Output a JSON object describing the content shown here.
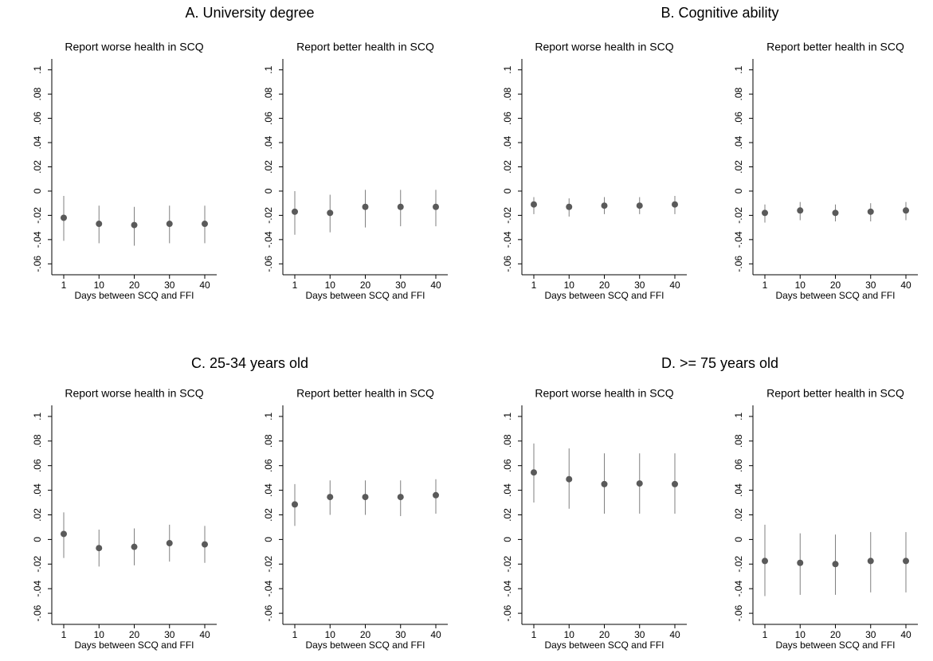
{
  "panel_titles": [
    "A. University degree",
    "B. Cognitive ability",
    "C. 25-34 years old",
    "D. >= 75 years old"
  ],
  "chart_data": [
    {
      "type": "errorbar",
      "title": "Report worse health in SCQ",
      "x_label": "Days between SCQ and FFI",
      "categories": [
        "1",
        "10",
        "20",
        "30",
        "40"
      ],
      "color": "#5a5a5a",
      "line_color": "#7f7f7f",
      "values": [
        -0.022,
        -0.027,
        -0.028,
        -0.027,
        -0.027
      ],
      "ci_low": [
        -0.041,
        -0.043,
        -0.045,
        -0.043,
        -0.043
      ],
      "ci_high": [
        -0.004,
        -0.012,
        -0.013,
        -0.012,
        -0.012
      ],
      "ylim": [
        -0.069,
        0.109
      ],
      "yticks": [
        {
          "value": -0.06,
          "label": "-.06"
        },
        {
          "value": -0.04,
          "label": "-.04"
        },
        {
          "value": -0.02,
          "label": "-.02"
        },
        0,
        {
          "value": 0.02,
          "label": ".02"
        },
        {
          "value": 0.04,
          "label": ".04"
        },
        {
          "value": 0.06,
          "label": ".06"
        },
        {
          "value": 0.08,
          "label": ".08"
        },
        {
          "value": 0.1,
          "label": ".1"
        }
      ]
    },
    {
      "type": "errorbar",
      "title": "Report better health in SCQ",
      "x_label": "Days between SCQ and FFI",
      "categories": [
        "1",
        "10",
        "20",
        "30",
        "40"
      ],
      "color": "#5a5a5a",
      "line_color": "#7f7f7f",
      "values": [
        -0.017,
        -0.018,
        -0.013,
        -0.013,
        -0.013
      ],
      "ci_low": [
        -0.036,
        -0.034,
        -0.03,
        -0.029,
        -0.029
      ],
      "ci_high": [
        0.0,
        -0.003,
        0.001,
        0.001,
        0.001
      ],
      "ylim": [
        -0.069,
        0.109
      ],
      "yticks": [
        {
          "value": -0.06,
          "label": "-.06"
        },
        {
          "value": -0.04,
          "label": "-.04"
        },
        {
          "value": -0.02,
          "label": "-.02"
        },
        0,
        {
          "value": 0.02,
          "label": ".02"
        },
        {
          "value": 0.04,
          "label": ".04"
        },
        {
          "value": 0.06,
          "label": ".06"
        },
        {
          "value": 0.08,
          "label": ".08"
        },
        {
          "value": 0.1,
          "label": ".1"
        }
      ]
    },
    {
      "type": "errorbar",
      "title": "Report worse health in SCQ",
      "x_label": "Days between SCQ and FFI",
      "categories": [
        "1",
        "10",
        "20",
        "30",
        "40"
      ],
      "color": "#5a5a5a",
      "line_color": "#7f7f7f",
      "values": [
        -0.011,
        -0.013,
        -0.012,
        -0.012,
        -0.011
      ],
      "ci_low": [
        -0.019,
        -0.021,
        -0.019,
        -0.019,
        -0.019
      ],
      "ci_high": [
        -0.005,
        -0.006,
        -0.005,
        -0.005,
        -0.004
      ],
      "ylim": [
        -0.069,
        0.109
      ],
      "yticks": [
        {
          "value": -0.06,
          "label": "-.06"
        },
        {
          "value": -0.04,
          "label": "-.04"
        },
        {
          "value": -0.02,
          "label": "-.02"
        },
        0,
        {
          "value": 0.02,
          "label": ".02"
        },
        {
          "value": 0.04,
          "label": ".04"
        },
        {
          "value": 0.06,
          "label": ".06"
        },
        {
          "value": 0.08,
          "label": ".08"
        },
        {
          "value": 0.1,
          "label": ".1"
        }
      ]
    },
    {
      "type": "errorbar",
      "title": "Report better health in SCQ",
      "x_label": "Days between SCQ and FFI",
      "categories": [
        "1",
        "10",
        "20",
        "30",
        "40"
      ],
      "color": "#5a5a5a",
      "line_color": "#7f7f7f",
      "values": [
        -0.018,
        -0.016,
        -0.018,
        -0.017,
        -0.016
      ],
      "ci_low": [
        -0.026,
        -0.024,
        -0.025,
        -0.025,
        -0.024
      ],
      "ci_high": [
        -0.011,
        -0.009,
        -0.011,
        -0.01,
        -0.009
      ],
      "ylim": [
        -0.069,
        0.109
      ],
      "yticks": [
        {
          "value": -0.06,
          "label": "-.06"
        },
        {
          "value": -0.04,
          "label": "-.04"
        },
        {
          "value": -0.02,
          "label": "-.02"
        },
        0,
        {
          "value": 0.02,
          "label": ".02"
        },
        {
          "value": 0.04,
          "label": ".04"
        },
        {
          "value": 0.06,
          "label": ".06"
        },
        {
          "value": 0.08,
          "label": ".08"
        },
        {
          "value": 0.1,
          "label": ".1"
        }
      ]
    },
    {
      "type": "errorbar",
      "title": "Report worse health in SCQ",
      "x_label": "Days between SCQ and FFI",
      "categories": [
        "1",
        "10",
        "20",
        "30",
        "40"
      ],
      "color": "#5a5a5a",
      "line_color": "#7f7f7f",
      "values": [
        0.0045,
        -0.007,
        -0.006,
        -0.003,
        -0.004
      ],
      "ci_low": [
        -0.015,
        -0.022,
        -0.021,
        -0.018,
        -0.019
      ],
      "ci_high": [
        0.022,
        0.008,
        0.009,
        0.012,
        0.011
      ],
      "ylim": [
        -0.069,
        0.109
      ],
      "yticks": [
        {
          "value": -0.06,
          "label": "-.06"
        },
        {
          "value": -0.04,
          "label": "-.04"
        },
        {
          "value": -0.02,
          "label": "-.02"
        },
        0,
        {
          "value": 0.02,
          "label": ".02"
        },
        {
          "value": 0.04,
          "label": ".04"
        },
        {
          "value": 0.06,
          "label": ".06"
        },
        {
          "value": 0.08,
          "label": ".08"
        },
        {
          "value": 0.1,
          "label": ".1"
        }
      ]
    },
    {
      "type": "errorbar",
      "title": "Report better health in SCQ",
      "x_label": "Days between SCQ and FFI",
      "categories": [
        "1",
        "10",
        "20",
        "30",
        "40"
      ],
      "color": "#5a5a5a",
      "line_color": "#7f7f7f",
      "values": [
        0.0285,
        0.0345,
        0.0345,
        0.0345,
        0.036
      ],
      "ci_low": [
        0.011,
        0.02,
        0.02,
        0.019,
        0.021
      ],
      "ci_high": [
        0.045,
        0.048,
        0.048,
        0.048,
        0.049
      ],
      "ylim": [
        -0.069,
        0.109
      ],
      "yticks": [
        {
          "value": -0.06,
          "label": "-.06"
        },
        {
          "value": -0.04,
          "label": "-.04"
        },
        {
          "value": -0.02,
          "label": "-.02"
        },
        0,
        {
          "value": 0.02,
          "label": ".02"
        },
        {
          "value": 0.04,
          "label": ".04"
        },
        {
          "value": 0.06,
          "label": ".06"
        },
        {
          "value": 0.08,
          "label": ".08"
        },
        {
          "value": 0.1,
          "label": ".1"
        }
      ]
    },
    {
      "type": "errorbar",
      "title": "Report worse health in SCQ",
      "x_label": "Days between SCQ and FFI",
      "categories": [
        "1",
        "10",
        "20",
        "30",
        "40"
      ],
      "color": "#5a5a5a",
      "line_color": "#7f7f7f",
      "values": [
        0.0545,
        0.049,
        0.045,
        0.0455,
        0.045
      ],
      "ci_low": [
        0.03,
        0.025,
        0.021,
        0.021,
        0.021
      ],
      "ci_high": [
        0.078,
        0.074,
        0.07,
        0.07,
        0.07
      ],
      "ylim": [
        -0.069,
        0.109
      ],
      "yticks": [
        {
          "value": -0.06,
          "label": "-.06"
        },
        {
          "value": -0.04,
          "label": "-.04"
        },
        {
          "value": -0.02,
          "label": "-.02"
        },
        0,
        {
          "value": 0.02,
          "label": ".02"
        },
        {
          "value": 0.04,
          "label": ".04"
        },
        {
          "value": 0.06,
          "label": ".06"
        },
        {
          "value": 0.08,
          "label": ".08"
        },
        {
          "value": 0.1,
          "label": ".1"
        }
      ]
    },
    {
      "type": "errorbar",
      "title": "Report better health in SCQ",
      "x_label": "Days between SCQ and FFI",
      "categories": [
        "1",
        "10",
        "20",
        "30",
        "40"
      ],
      "color": "#5a5a5a",
      "line_color": "#7f7f7f",
      "values": [
        -0.0175,
        -0.019,
        -0.02,
        -0.0175,
        -0.0175
      ],
      "ci_low": [
        -0.046,
        -0.045,
        -0.045,
        -0.043,
        -0.043
      ],
      "ci_high": [
        0.012,
        0.005,
        0.004,
        0.006,
        0.006
      ],
      "ylim": [
        -0.069,
        0.109
      ],
      "yticks": [
        {
          "value": -0.06,
          "label": "-.06"
        },
        {
          "value": -0.04,
          "label": "-.04"
        },
        {
          "value": -0.02,
          "label": "-.02"
        },
        0,
        {
          "value": 0.02,
          "label": ".02"
        },
        {
          "value": 0.04,
          "label": ".04"
        },
        {
          "value": 0.06,
          "label": ".06"
        },
        {
          "value": 0.08,
          "label": ".08"
        },
        {
          "value": 0.1,
          "label": ".1"
        }
      ]
    }
  ]
}
